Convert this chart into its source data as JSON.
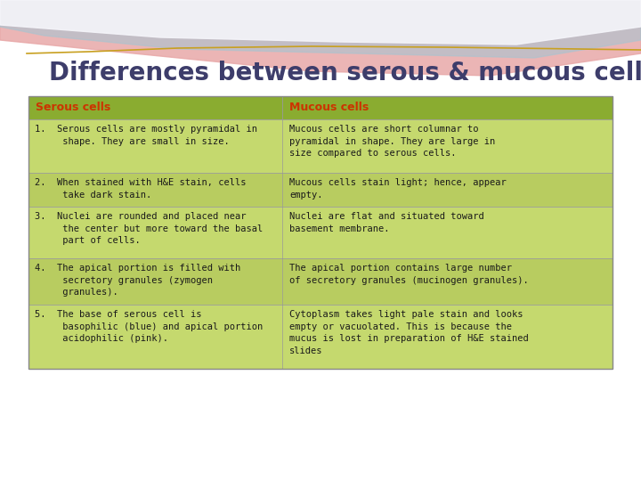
{
  "title": "Differences between serous & mucous cells",
  "title_color": "#3d3d6b",
  "title_fontsize": 20,
  "bg_color": "#ffffff",
  "header_bg": "#8aac30",
  "row_bg_odd": "#c5d96e",
  "row_bg_even": "#b8cc60",
  "header_text_color": "#cc3300",
  "body_text_color": "#1a1a1a",
  "col1_header": "Serous cells",
  "col2_header": "Mucous cells",
  "wave_pink": "#e8a8a8",
  "wave_blue": "#a8c4d0",
  "wave_gold": "#c8a020",
  "rows": [
    {
      "serous": "1.  Serous cells are mostly pyramidal in\n     shape. They are small in size.",
      "mucous": "Mucous cells are short columnar to\npyramidal in shape. They are large in\nsize compared to serous cells."
    },
    {
      "serous": "2.  When stained with H&E stain, cells\n     take dark stain.",
      "mucous": "Mucous cells stain light; hence, appear\nempty."
    },
    {
      "serous": "3.  Nuclei are rounded and placed near\n     the center but more toward the basal\n     part of cells.",
      "mucous": "Nuclei are flat and situated toward\nbasement membrane."
    },
    {
      "serous": "4.  The apical portion is filled with\n     secretory granules (zymogen\n     granules).",
      "mucous": "The apical portion contains large number\nof secretory granules (mucinogen granules)."
    },
    {
      "serous": "5.  The base of serous cell is\n     basophilic (blue) and apical portion\n     acidophilic (pink).",
      "mucous": "Cytoplasm takes light pale stain and looks\nempty or vacuolated. This is because the\nmucus is lost in preparation of H&E stained\nslides"
    }
  ]
}
